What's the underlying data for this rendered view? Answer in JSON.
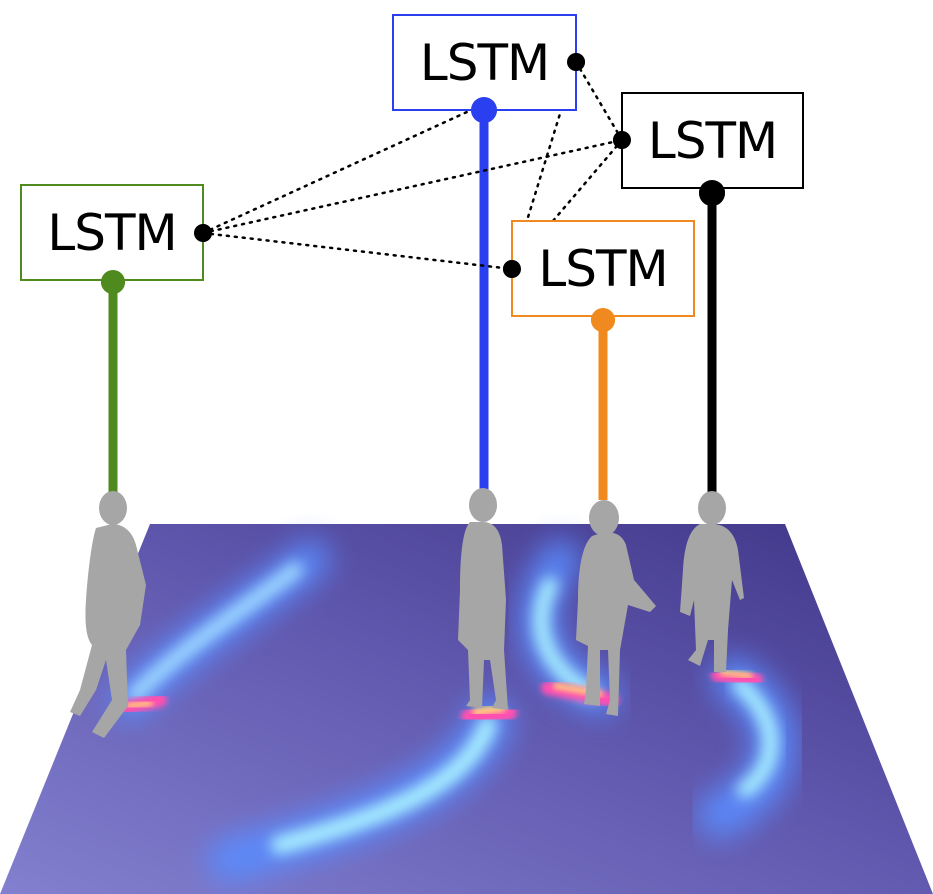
{
  "diagram": {
    "colors": {
      "green": "#4f8a1e",
      "blue": "#2a40f0",
      "orange": "#f08a1e",
      "black": "#000000",
      "floor_dark": "#4a4090",
      "floor_light": "#7f7ec8",
      "silhouette": "#a6a6a6"
    },
    "lstm_units": [
      {
        "id": "green",
        "label": "LSTM",
        "color": "#4f8a1e"
      },
      {
        "id": "blue",
        "label": "LSTM",
        "color": "#2a40f0"
      },
      {
        "id": "black",
        "label": "LSTM",
        "color": "#000000"
      },
      {
        "id": "orange",
        "label": "LSTM",
        "color": "#f08a1e"
      }
    ],
    "pooling_links": [
      [
        "green",
        "blue"
      ],
      [
        "green",
        "black"
      ],
      [
        "green",
        "orange"
      ],
      [
        "blue",
        "black"
      ],
      [
        "blue",
        "orange"
      ],
      [
        "black",
        "orange"
      ]
    ],
    "pedestrians": [
      "green",
      "blue",
      "orange",
      "black"
    ]
  }
}
